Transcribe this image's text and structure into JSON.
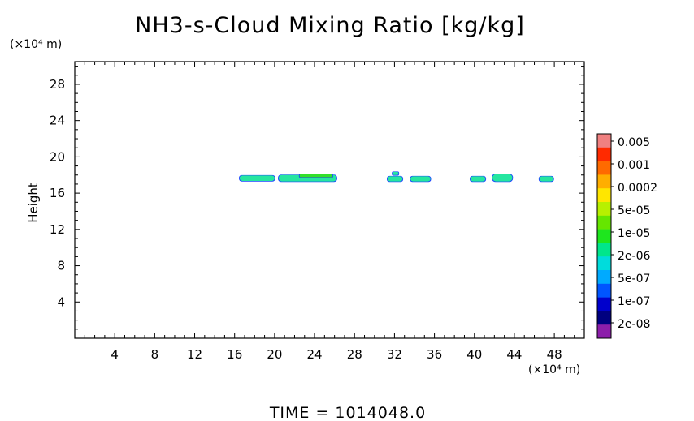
{
  "chart_data": {
    "type": "heatmap",
    "title": "NH3-s-Cloud Mixing Ratio [kg/kg]",
    "ylabel": "Height",
    "x_unit": "(×10⁴ m)",
    "y_unit": "(×10⁴ m)",
    "xlim": [
      0,
      51
    ],
    "ylim": [
      0,
      30.5
    ],
    "x_ticks": [
      4,
      8,
      12,
      16,
      20,
      24,
      28,
      32,
      36,
      40,
      44,
      48
    ],
    "x_tick_labels": [
      "4",
      "8",
      "12",
      "16",
      "20",
      "24",
      "28",
      "32",
      "36",
      "40",
      "44",
      "48"
    ],
    "y_ticks": [
      4,
      8,
      12,
      16,
      20,
      24,
      28
    ],
    "y_tick_labels": [
      "4",
      "8",
      "12",
      "16",
      "20",
      "24",
      "28"
    ],
    "grid": false,
    "colorbar": {
      "labels": [
        "0.005",
        "0.001",
        "0.0002",
        "5e-05",
        "1e-05",
        "2e-06",
        "5e-07",
        "1e-07",
        "2e-08"
      ],
      "colors": [
        "#f08080",
        "#ff2a00",
        "#ff6a00",
        "#ffae00",
        "#ffe600",
        "#b8f000",
        "#66e600",
        "#1ee61e",
        "#00e68c",
        "#00dcdc",
        "#00aaff",
        "#0055ff",
        "#0000cc",
        "#000080",
        "#8c1eaa"
      ]
    },
    "cloud_patches": [
      {
        "x": [
          16.5,
          20.0
        ],
        "y": [
          17.35,
          17.95
        ],
        "level": "2e-06"
      },
      {
        "x": [
          20.4,
          26.2
        ],
        "y": [
          17.3,
          18.0
        ],
        "level": "2e-06"
      },
      {
        "x": [
          22.5,
          25.8
        ],
        "y": [
          17.75,
          18.1
        ],
        "level": "1e-05"
      },
      {
        "x": [
          31.3,
          32.8
        ],
        "y": [
          17.3,
          17.85
        ],
        "level": "2e-06"
      },
      {
        "x": [
          31.8,
          32.4
        ],
        "y": [
          18.0,
          18.35
        ],
        "level": "2e-06"
      },
      {
        "x": [
          33.6,
          35.6
        ],
        "y": [
          17.3,
          17.85
        ],
        "level": "2e-06"
      },
      {
        "x": [
          39.6,
          41.1
        ],
        "y": [
          17.3,
          17.85
        ],
        "level": "2e-06"
      },
      {
        "x": [
          41.8,
          43.8
        ],
        "y": [
          17.3,
          18.1
        ],
        "level": "2e-06"
      },
      {
        "x": [
          46.5,
          47.9
        ],
        "y": [
          17.3,
          17.85
        ],
        "level": "2e-06"
      }
    ],
    "footer": "TIME  =  1014048.0"
  }
}
